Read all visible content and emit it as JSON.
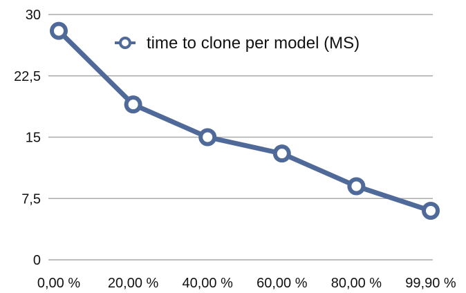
{
  "colors": {
    "series": "#4f6a99",
    "grid": "#aaaaaa",
    "text": "#111111"
  },
  "chart_data": {
    "type": "line",
    "title": "",
    "xlabel": "",
    "ylabel": "",
    "categories": [
      "0,00 %",
      "20,00 %",
      "40,00 %",
      "60,00 %",
      "80,00 %",
      "99,90 %"
    ],
    "series": [
      {
        "name": "time to clone per model (MS)",
        "values": [
          28,
          19,
          15,
          13,
          9,
          6
        ]
      }
    ],
    "ylim": [
      0,
      30
    ],
    "yticks": [
      0,
      7.5,
      15,
      22.5,
      30
    ],
    "ytick_labels": [
      "0",
      "7,5",
      "15",
      "22,5",
      "30"
    ],
    "grid": true,
    "legend_position": "top-right"
  }
}
